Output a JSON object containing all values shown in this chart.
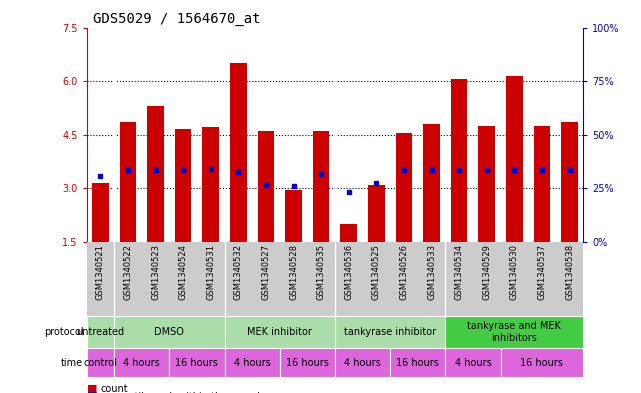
{
  "title": "GDS5029 / 1564670_at",
  "samples": [
    "GSM1340521",
    "GSM1340522",
    "GSM1340523",
    "GSM1340524",
    "GSM1340531",
    "GSM1340532",
    "GSM1340527",
    "GSM1340528",
    "GSM1340535",
    "GSM1340536",
    "GSM1340525",
    "GSM1340526",
    "GSM1340533",
    "GSM1340534",
    "GSM1340529",
    "GSM1340530",
    "GSM1340537",
    "GSM1340538"
  ],
  "bar_heights": [
    3.15,
    4.85,
    5.3,
    4.65,
    4.7,
    6.5,
    4.6,
    2.95,
    4.6,
    2.0,
    3.1,
    4.55,
    4.8,
    6.05,
    4.75,
    6.15,
    4.75,
    4.85
  ],
  "blue_dot_y": [
    3.35,
    3.5,
    3.5,
    3.5,
    3.55,
    3.45,
    3.1,
    3.05,
    3.4,
    2.9,
    3.15,
    3.5,
    3.5,
    3.5,
    3.5,
    3.5,
    3.5,
    3.5
  ],
  "ylim_left": [
    1.5,
    7.5
  ],
  "yticks_left": [
    1.5,
    3.0,
    4.5,
    6.0,
    7.5
  ],
  "ylim_right": [
    0,
    100
  ],
  "yticks_right": [
    0,
    25,
    50,
    75,
    100
  ],
  "bar_color": "#cc0000",
  "dot_color": "#0000cc",
  "grid_yticks": [
    3.0,
    4.5,
    6.0
  ],
  "protocol_defs": [
    {
      "label": "untreated",
      "start": 0,
      "end": 1,
      "color": "#aaddaa"
    },
    {
      "label": "DMSO",
      "start": 1,
      "end": 5,
      "color": "#aaddaa"
    },
    {
      "label": "MEK inhibitor",
      "start": 5,
      "end": 9,
      "color": "#aaddaa"
    },
    {
      "label": "tankyrase inhibitor",
      "start": 9,
      "end": 13,
      "color": "#aaddaa"
    },
    {
      "label": "tankyrase and MEK\ninhibitors",
      "start": 13,
      "end": 18,
      "color": "#44cc44"
    }
  ],
  "time_defs": [
    {
      "label": "control",
      "start": 0,
      "end": 1
    },
    {
      "label": "4 hours",
      "start": 1,
      "end": 3
    },
    {
      "label": "16 hours",
      "start": 3,
      "end": 5
    },
    {
      "label": "4 hours",
      "start": 5,
      "end": 7
    },
    {
      "label": "16 hours",
      "start": 7,
      "end": 9
    },
    {
      "label": "4 hours",
      "start": 9,
      "end": 11
    },
    {
      "label": "16 hours",
      "start": 11,
      "end": 13
    },
    {
      "label": "4 hours",
      "start": 13,
      "end": 15
    },
    {
      "label": "16 hours",
      "start": 15,
      "end": 18
    }
  ],
  "time_color": "#dd66dd",
  "title_fontsize": 10,
  "tick_fontsize": 7,
  "sample_fontsize": 6,
  "annot_fontsize": 7,
  "legend_fontsize": 7
}
